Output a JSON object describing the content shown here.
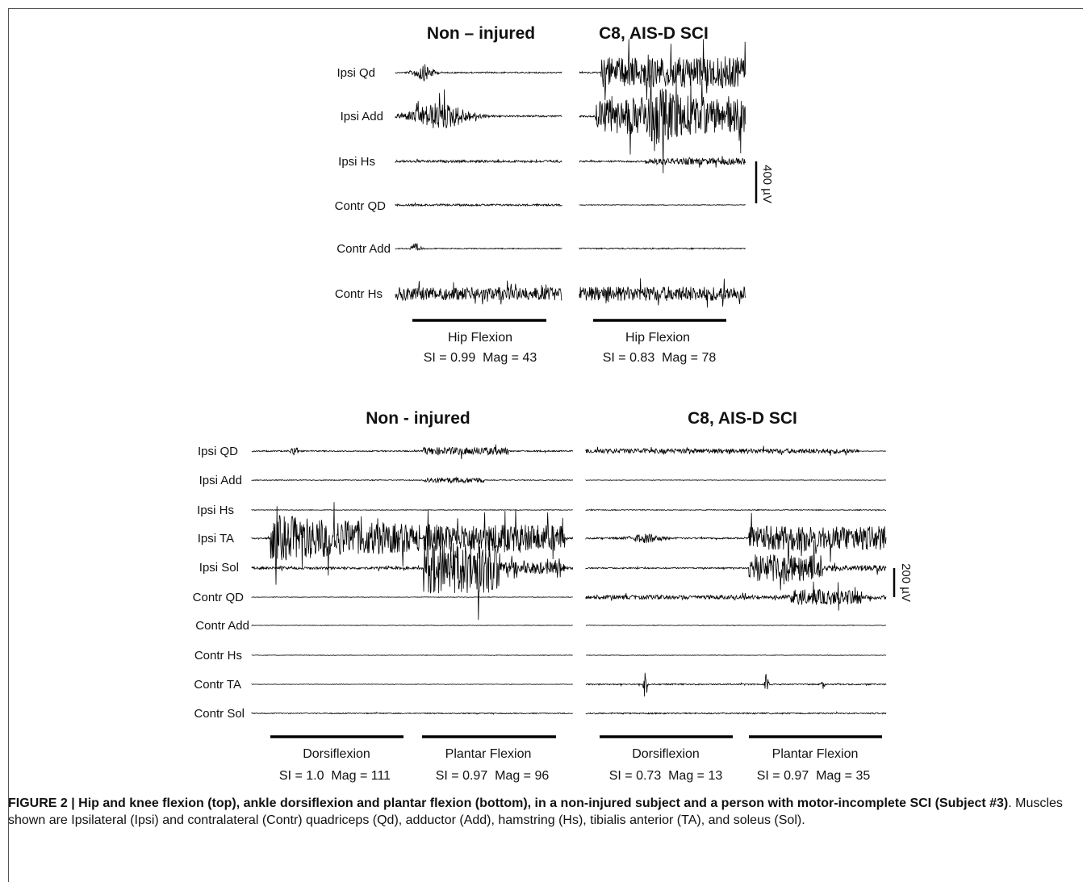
{
  "top_panel": {
    "titles": [
      "Non – injured",
      "C8, AIS-D SCI"
    ],
    "muscles": [
      "Ipsi Qd",
      "Ipsi Add",
      "Ipsi Hs",
      "Contr QD",
      "Contr Add",
      "Contr Hs"
    ],
    "scale_bar": "400 µV",
    "task_labels": [
      "Hip Flexion",
      "Hip Flexion"
    ],
    "stats": [
      "SI = 0.99  Mag = 43",
      "SI = 0.83  Mag = 78"
    ]
  },
  "bottom_panel": {
    "titles": [
      "Non - injured",
      "C8, AIS-D SCI"
    ],
    "muscles": [
      "Ipsi QD",
      "Ipsi Add",
      "Ipsi Hs",
      "Ipsi TA",
      "Ipsi Sol",
      "Contr QD",
      "Contr Add",
      "Contr Hs",
      "Contr TA",
      "Contr Sol"
    ],
    "scale_bar": "200 µV",
    "task_labels": [
      "Dorsiflexion",
      "Plantar Flexion",
      "Dorsiflexion",
      "Plantar Flexion"
    ],
    "stats": [
      "SI = 1.0  Mag = 111",
      "SI = 0.97  Mag = 96",
      "SI = 0.73  Mag = 13",
      "SI = 0.97  Mag = 35"
    ]
  },
  "caption": {
    "bold": "FIGURE 2 | Hip and knee flexion (top), ankle dorsiflexion and plantar flexion (bottom), in a non-injured subject and a person with motor-incomplete SCI (Subject #3)",
    "rest": ". Muscles shown are Ipsilateral (Ipsi) and contralateral (Contr) quadriceps (Qd), adductor (Add), hamstring (Hs), tibialis anterior (TA), and soleus (Sol)."
  }
}
